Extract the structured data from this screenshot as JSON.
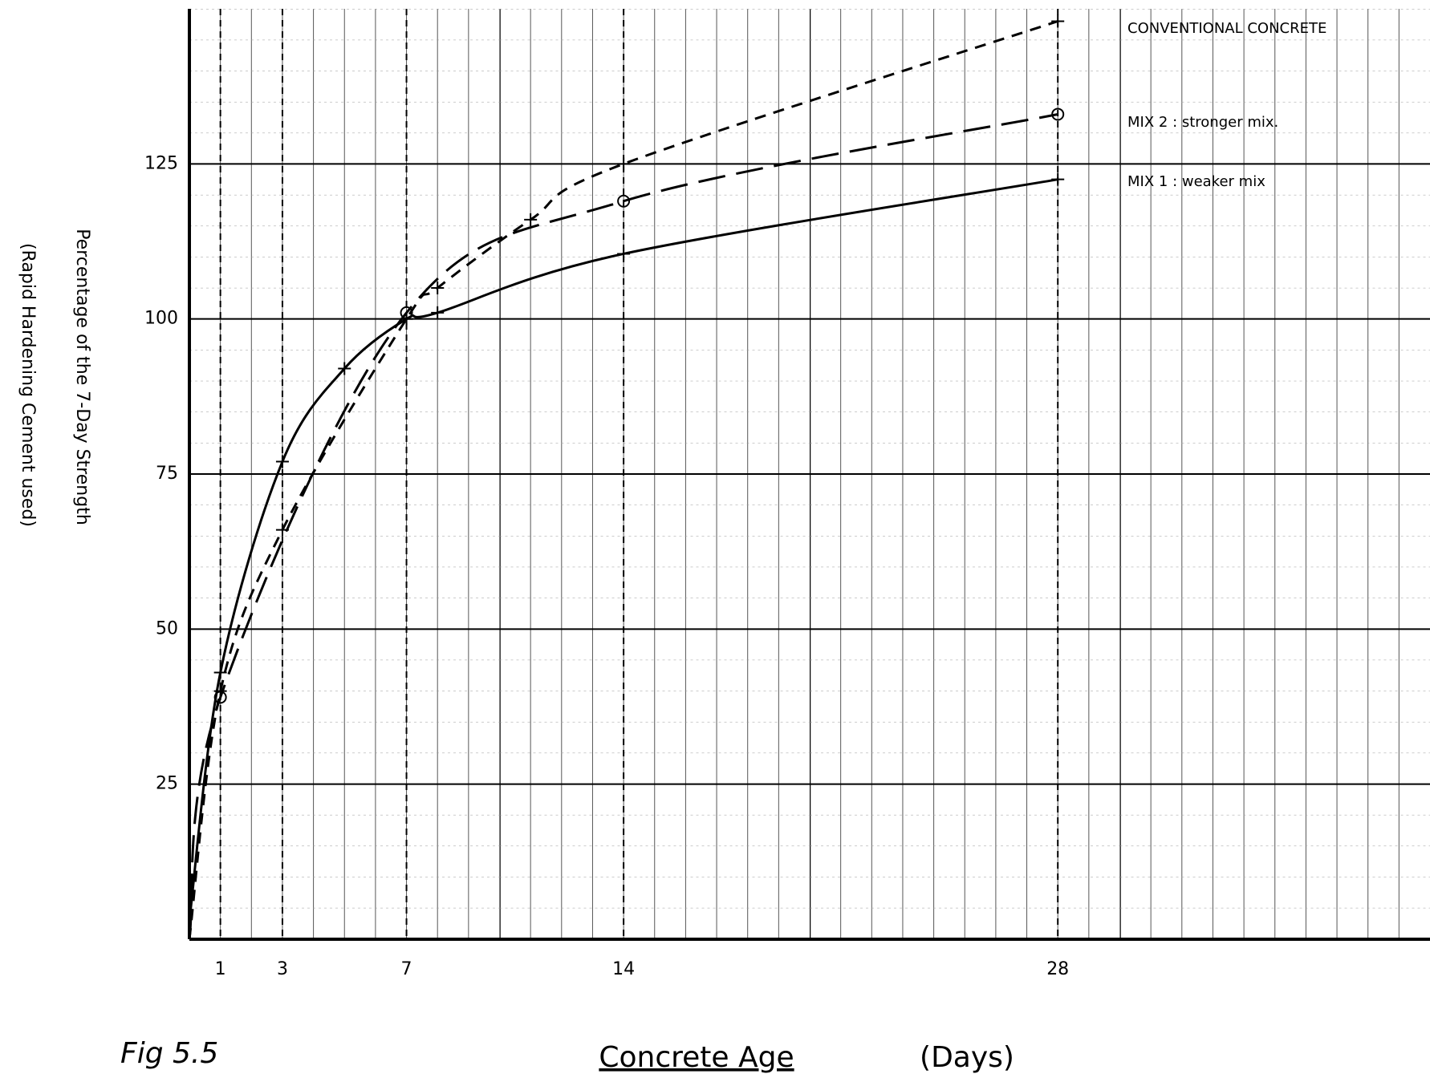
{
  "chart_data": {
    "type": "line",
    "y_label": "Percentage of the 7-Day Strength",
    "y_sublabel": "(Rapid Hardening Cement used)",
    "x_label": "Concrete Age",
    "x_unit": "(Days)",
    "figure_label": "Fig 5.5",
    "xlim": [
      0,
      40
    ],
    "xticks": [
      1,
      3,
      7,
      14,
      28
    ],
    "ylim": [
      0,
      150
    ],
    "yticks": [
      25,
      50,
      75,
      100,
      125
    ],
    "grid": true,
    "series": [
      {
        "name": "CONVENTIONAL CONCRETE",
        "color": "#000000",
        "dash": "14 10",
        "marker": "cross",
        "x": [
          0,
          1,
          3,
          7,
          8,
          11,
          14,
          28
        ],
        "values": [
          0,
          40,
          66,
          100,
          105,
          116,
          125,
          148
        ]
      },
      {
        "name": "MIX 2 : stronger mix.",
        "color": "#000000",
        "dash": "34 14",
        "marker": "circle",
        "x": [
          0,
          1,
          7,
          14,
          28
        ],
        "values": [
          0,
          39,
          101,
          119,
          133
        ]
      },
      {
        "name": "MIX 1 : weaker mix",
        "color": "#000000",
        "dash": "none",
        "marker": "cross",
        "x": [
          0,
          1,
          3,
          5,
          7,
          8,
          14,
          28
        ],
        "values": [
          3,
          43,
          77,
          92,
          100,
          101,
          110.5,
          122.5
        ]
      }
    ]
  }
}
